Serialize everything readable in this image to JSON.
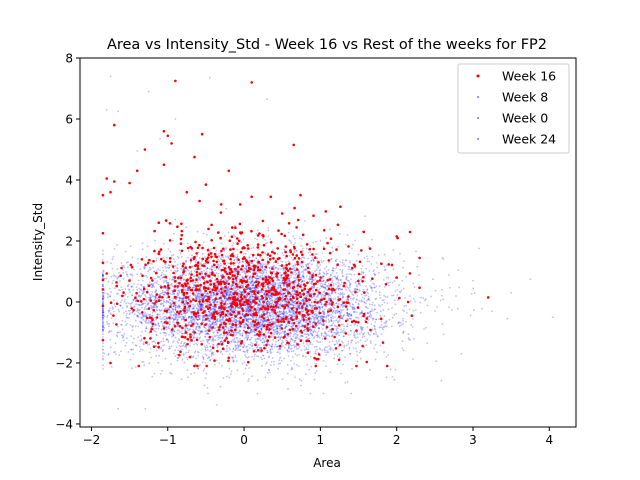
{
  "chart_data": {
    "type": "scatter",
    "title": "Area vs Intensity_Std - Week 16 vs Rest of the weeks for FP2",
    "xlabel": "Area",
    "ylabel": "Intensity_Std",
    "xlim": [
      -2.15,
      4.35
    ],
    "ylim": [
      -4.1,
      8.0
    ],
    "xticks": [
      -2,
      -1,
      0,
      1,
      2,
      3,
      4
    ],
    "yticks": [
      -4,
      -2,
      0,
      2,
      4,
      6,
      8
    ],
    "grid": false,
    "legend_position": "top-right",
    "series": [
      {
        "name": "Week 16",
        "color": "#ff0000",
        "marker_alpha": 1.0,
        "cloud": {
          "count": 950,
          "x_mean": 0.05,
          "x_sd": 0.75,
          "y_mean": 0.35,
          "y_sd": 1.0,
          "x_min": -1.85,
          "x_max": 2.3,
          "y_min": -2.1,
          "y_max": 3.5
        },
        "points": [
          [
            -0.9,
            7.25
          ],
          [
            0.1,
            7.2
          ],
          [
            -1.05,
            5.6
          ],
          [
            -1.7,
            5.8
          ],
          [
            -1.0,
            5.45
          ],
          [
            -0.55,
            5.5
          ],
          [
            -0.95,
            5.2
          ],
          [
            0.65,
            5.15
          ],
          [
            -1.3,
            5.0
          ],
          [
            -0.65,
            4.75
          ],
          [
            -1.05,
            4.5
          ],
          [
            -1.4,
            4.3
          ],
          [
            -0.2,
            4.3
          ],
          [
            -1.8,
            4.05
          ],
          [
            -1.7,
            3.95
          ],
          [
            -1.5,
            3.9
          ],
          [
            -0.5,
            3.85
          ],
          [
            -0.75,
            3.6
          ],
          [
            -1.85,
            3.5
          ],
          [
            -1.75,
            3.6
          ],
          [
            0.35,
            3.45
          ],
          [
            0.1,
            3.45
          ],
          [
            -0.3,
            3.2
          ],
          [
            2.0,
            2.15
          ],
          [
            1.65,
            1.75
          ],
          [
            1.8,
            1.25
          ],
          [
            2.0,
            0.8
          ],
          [
            2.15,
            0.0
          ],
          [
            3.2,
            0.15
          ],
          [
            2.2,
            -0.45
          ],
          [
            1.05,
            2.35
          ],
          [
            0.5,
            2.9
          ],
          [
            -1.75,
            -2.0
          ],
          [
            -0.05,
            3.2
          ]
        ]
      },
      {
        "name": "Week 8",
        "color": "#0000ff",
        "marker_alpha": 0.25,
        "cloud": {
          "count": 2200,
          "x_mean": 0.1,
          "x_sd": 0.9,
          "y_mean": -0.1,
          "y_sd": 0.85,
          "x_min": -1.85,
          "x_max": 4.1,
          "y_min": -3.5,
          "y_max": 7.4
        },
        "points": [
          [
            -1.75,
            7.4
          ],
          [
            -0.45,
            7.35
          ],
          [
            0.3,
            6.65
          ],
          [
            -1.8,
            6.3
          ],
          [
            -1.65,
            6.25
          ],
          [
            -1.65,
            -3.5
          ],
          [
            4.05,
            -0.5
          ],
          [
            3.5,
            0.3
          ],
          [
            3.75,
            0.75
          ],
          [
            2.85,
            -1.7
          ]
        ]
      },
      {
        "name": "Week 0",
        "color": "#0000ff",
        "marker_alpha": 0.25,
        "cloud": {
          "count": 2200,
          "x_mean": 0.0,
          "x_sd": 0.85,
          "y_mean": -0.1,
          "y_sd": 0.85,
          "x_min": -1.85,
          "x_max": 3.8,
          "y_min": -3.0,
          "y_max": 6.0
        },
        "points": [
          [
            -1.25,
            6.9
          ],
          [
            -0.9,
            6.0
          ],
          [
            2.6,
            1.45
          ],
          [
            3.25,
            -0.3
          ],
          [
            2.4,
            -1.35
          ]
        ]
      },
      {
        "name": "Week 24",
        "color": "#0000ff",
        "marker_alpha": 0.25,
        "cloud": {
          "count": 2200,
          "x_mean": 0.15,
          "x_sd": 0.9,
          "y_mean": -0.15,
          "y_sd": 0.85,
          "x_min": -1.85,
          "x_max": 3.9,
          "y_min": -3.0,
          "y_max": 5.5
        },
        "points": [
          [
            -1.1,
            5.35
          ],
          [
            -1.4,
            4.95
          ],
          [
            3.0,
            0.7
          ],
          [
            3.45,
            -0.55
          ]
        ]
      }
    ]
  }
}
